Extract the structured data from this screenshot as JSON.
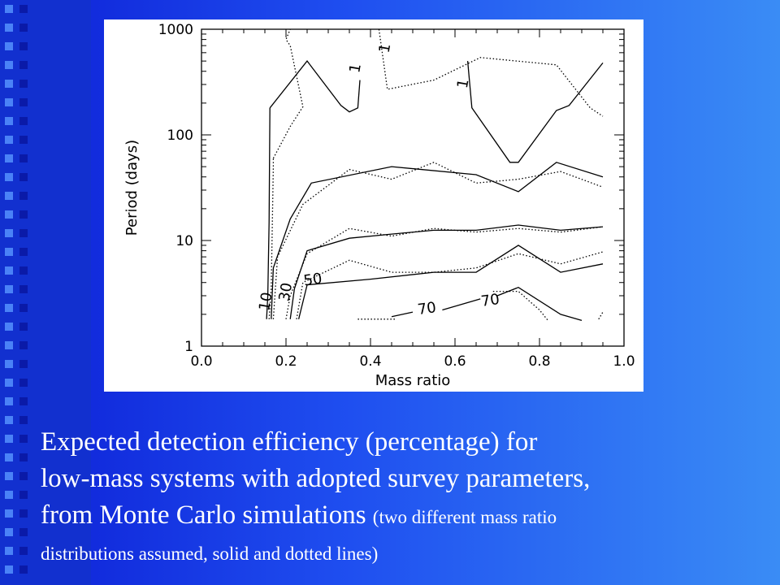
{
  "caption": {
    "line1": "Expected detection efficiency (percentage) for",
    "line2": "low-mass systems with adopted survey parameters,",
    "line3_main": "from Monte Carlo simulations",
    "line3_small": "(two different mass ratio",
    "line4_small": "distributions assumed,  solid and dotted lines)"
  },
  "colors": {
    "background": "#1f4ff0",
    "strip": "#1230cf",
    "square_a": "#4a82f7",
    "square_b": "#0a1aa8",
    "panel": "#ffffff"
  },
  "chart_data": {
    "type": "line",
    "title": "",
    "xlabel": "Mass ratio",
    "ylabel": "Period (days)",
    "xlim": [
      0.0,
      1.0
    ],
    "ylim": [
      1,
      1000
    ],
    "yscale": "log",
    "xticks": [
      0.0,
      0.2,
      0.4,
      0.6,
      0.8,
      1.0
    ],
    "xtick_labels": [
      "0.0",
      "0.2",
      "0.4",
      "0.6",
      "0.8",
      "1.0"
    ],
    "yticks": [
      1,
      10,
      100,
      1000
    ],
    "ytick_labels": [
      "1",
      "10",
      "100",
      "1000"
    ],
    "legend": "none",
    "series": [
      {
        "level": "1",
        "style": "solid",
        "points": [
          [
            0.162,
            180
          ],
          [
            0.25,
            500
          ],
          [
            0.33,
            190
          ],
          [
            0.35,
            165
          ],
          [
            0.37,
            180
          ],
          [
            0.375,
            330
          ]
        ]
      },
      {
        "level": "1",
        "style": "solid",
        "points": [
          [
            0.63,
            500
          ],
          [
            0.64,
            180
          ],
          [
            0.73,
            55
          ],
          [
            0.75,
            55
          ],
          [
            0.84,
            170
          ],
          [
            0.87,
            190
          ],
          [
            0.95,
            480
          ]
        ]
      },
      {
        "level": "1",
        "style": "dotted",
        "points": [
          [
            0.17,
            60
          ],
          [
            0.21,
            120
          ],
          [
            0.24,
            185
          ],
          [
            0.21,
            700
          ],
          [
            0.2,
            800
          ],
          [
            0.21,
            1000
          ]
        ]
      },
      {
        "level": "1",
        "style": "dotted",
        "points": [
          [
            0.42,
            1000
          ],
          [
            0.44,
            270
          ],
          [
            0.55,
            330
          ],
          [
            0.66,
            540
          ],
          [
            0.84,
            460
          ],
          [
            0.92,
            180
          ],
          [
            0.95,
            150
          ]
        ]
      },
      {
        "level": "10",
        "style": "solid",
        "points": [
          [
            0.154,
            1.8
          ],
          [
            0.157,
            3
          ],
          [
            0.16,
            15
          ],
          [
            0.162,
            180
          ]
        ]
      },
      {
        "level": "10",
        "style": "solid",
        "points": [
          [
            0.165,
            1.8
          ],
          [
            0.17,
            5.5
          ],
          [
            0.21,
            16
          ],
          [
            0.26,
            35
          ],
          [
            0.45,
            50
          ],
          [
            0.65,
            42
          ],
          [
            0.75,
            29
          ],
          [
            0.84,
            55
          ],
          [
            0.95,
            40
          ]
        ]
      },
      {
        "level": "10",
        "style": "dotted",
        "points": [
          [
            0.16,
            1.8
          ],
          [
            0.165,
            3.5
          ],
          [
            0.17,
            50
          ],
          [
            0.17,
            60
          ]
        ]
      },
      {
        "level": "10",
        "style": "dotted",
        "points": [
          [
            0.17,
            1.8
          ],
          [
            0.18,
            7
          ],
          [
            0.24,
            22
          ],
          [
            0.35,
            47
          ],
          [
            0.45,
            38
          ],
          [
            0.55,
            55
          ],
          [
            0.65,
            35
          ],
          [
            0.75,
            38
          ],
          [
            0.85,
            45
          ],
          [
            0.95,
            32
          ]
        ]
      },
      {
        "level": "30",
        "style": "solid",
        "points": [
          [
            0.21,
            1.8
          ],
          [
            0.22,
            3.5
          ],
          [
            0.25,
            8
          ],
          [
            0.35,
            10.5
          ],
          [
            0.45,
            11.5
          ],
          [
            0.55,
            12.5
          ],
          [
            0.65,
            12.5
          ],
          [
            0.75,
            14
          ],
          [
            0.85,
            12.5
          ],
          [
            0.95,
            13.5
          ]
        ]
      },
      {
        "level": "30",
        "style": "dotted",
        "points": [
          [
            0.2,
            1.8
          ],
          [
            0.21,
            3
          ],
          [
            0.25,
            7.5
          ],
          [
            0.35,
            13
          ],
          [
            0.45,
            11
          ],
          [
            0.55,
            13
          ],
          [
            0.65,
            12
          ],
          [
            0.75,
            13
          ],
          [
            0.85,
            12
          ],
          [
            0.95,
            13.5
          ]
        ]
      },
      {
        "level": "50",
        "style": "solid",
        "points": [
          [
            0.23,
            1.8
          ],
          [
            0.25,
            3.8
          ],
          [
            0.4,
            4.3
          ],
          [
            0.55,
            5
          ],
          [
            0.65,
            5
          ],
          [
            0.75,
            9
          ],
          [
            0.85,
            5
          ],
          [
            0.95,
            6
          ]
        ]
      },
      {
        "level": "50",
        "style": "dotted",
        "points": [
          [
            0.225,
            1.8
          ],
          [
            0.24,
            4
          ],
          [
            0.35,
            6.5
          ],
          [
            0.45,
            5
          ],
          [
            0.55,
            5
          ],
          [
            0.65,
            5.5
          ],
          [
            0.75,
            7.5
          ],
          [
            0.85,
            6
          ],
          [
            0.95,
            7.8
          ]
        ]
      },
      {
        "level": "70",
        "style": "solid",
        "points": [
          [
            0.45,
            1.9
          ],
          [
            0.5,
            2.1
          ]
        ]
      },
      {
        "level": "70",
        "style": "solid",
        "points": [
          [
            0.57,
            2.2
          ],
          [
            0.66,
            2.8
          ]
        ]
      },
      {
        "level": "70",
        "style": "solid",
        "points": [
          [
            0.7,
            3
          ],
          [
            0.75,
            3.6
          ],
          [
            0.85,
            2
          ],
          [
            0.9,
            1.75
          ]
        ]
      },
      {
        "level": "70",
        "style": "dotted",
        "points": [
          [
            0.37,
            1.8
          ],
          [
            0.46,
            1.8
          ]
        ]
      },
      {
        "level": "70",
        "style": "dotted",
        "points": [
          [
            0.69,
            3.3
          ],
          [
            0.75,
            3.3
          ],
          [
            0.8,
            2.2
          ],
          [
            0.82,
            1.75
          ]
        ]
      },
      {
        "level": "70",
        "style": "dotted",
        "points": [
          [
            0.94,
            1.8
          ],
          [
            0.95,
            2.1
          ]
        ]
      }
    ],
    "annotations": [
      {
        "text": "1",
        "x": 0.375,
        "y": 420
      },
      {
        "text": "1",
        "x": 0.445,
        "y": 650
      },
      {
        "text": "1",
        "x": 0.63,
        "y": 300
      },
      {
        "text": "10",
        "x": 0.163,
        "y": 2.6
      },
      {
        "text": "30",
        "x": 0.21,
        "y": 3.2
      },
      {
        "text": "50",
        "x": 0.265,
        "y": 3.85
      },
      {
        "text": "70",
        "x": 0.535,
        "y": 2.05
      },
      {
        "text": "70",
        "x": 0.685,
        "y": 2.45
      }
    ]
  }
}
